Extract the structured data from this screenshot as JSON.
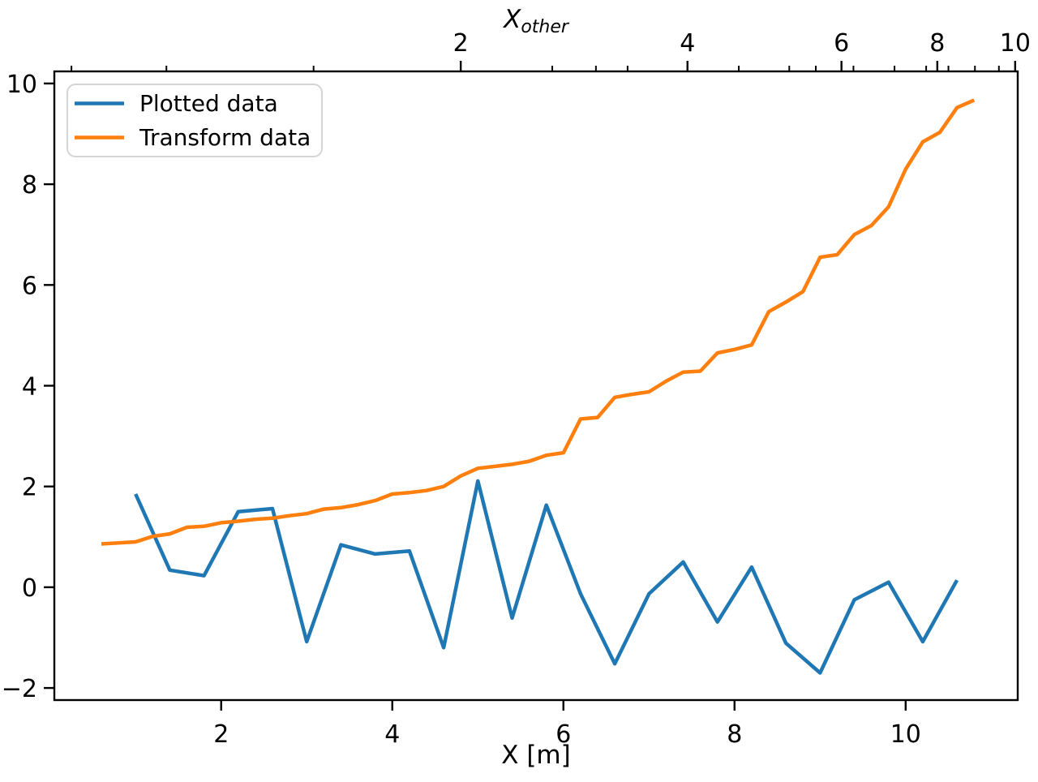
{
  "figure": {
    "background": "#ffffff",
    "frame_color": "#000000"
  },
  "legend": {
    "position": "upper left",
    "items": [
      {
        "label": "Plotted data",
        "color": "#1f77b4"
      },
      {
        "label": "Transform data",
        "color": "#ff7f0e"
      }
    ]
  },
  "chart_data": {
    "type": "line",
    "title": "",
    "xlabel": "X [m]",
    "ylabel": "",
    "top_xlabel": "X_other",
    "top_xlabel_parts": {
      "main": "X",
      "sub": "other"
    },
    "xlim": [
      0.05,
      11.31
    ],
    "ylim": [
      -2.24,
      10.24
    ],
    "grid": false,
    "legend_position": "upper left",
    "x_ticks": {
      "values": [
        2,
        4,
        6,
        8,
        10
      ],
      "labels": [
        "2",
        "4",
        "6",
        "8",
        "10"
      ]
    },
    "y_ticks": {
      "values": [
        -2,
        0,
        2,
        4,
        6,
        8,
        10
      ],
      "labels": [
        "−2",
        "0",
        "2",
        "4",
        "6",
        "8",
        "10"
      ]
    },
    "top_x_ticks": {
      "note": "secondary nonlinear axis; positions given in bottom-axis coordinates",
      "values": [
        2,
        4,
        6,
        8,
        10
      ],
      "labels": [
        "2",
        "4",
        "6",
        "8",
        "10"
      ],
      "positions": [
        4.8,
        7.45,
        9.25,
        10.37,
        11.28
      ],
      "minor_positions": [
        0.25,
        1.36,
        3.08,
        5.87,
        6.38,
        6.75,
        8.05,
        8.64,
        8.95,
        9.39,
        9.87,
        10.24,
        10.5,
        10.81,
        11.09
      ]
    },
    "series": [
      {
        "name": "Plotted data",
        "color": "#1f77b4",
        "x": [
          1.0,
          1.4,
          1.8,
          2.2,
          2.6,
          3.0,
          3.4,
          3.8,
          4.2,
          4.6,
          5.0,
          5.4,
          5.8,
          6.2,
          6.6,
          7.0,
          7.4,
          7.8,
          8.2,
          8.6,
          9.0,
          9.4,
          9.8,
          10.2,
          10.6
        ],
        "y": [
          1.85,
          0.34,
          0.23,
          1.5,
          1.56,
          -1.08,
          0.84,
          0.66,
          0.72,
          -1.2,
          2.11,
          -0.61,
          1.63,
          -0.13,
          -1.52,
          -0.13,
          0.5,
          -0.69,
          0.4,
          -1.11,
          -1.7,
          -0.25,
          0.1,
          -1.08,
          0.14
        ]
      },
      {
        "name": "Transform data",
        "color": "#ff7f0e",
        "x": [
          0.6,
          0.8,
          1.0,
          1.2,
          1.4,
          1.6,
          1.8,
          2.0,
          2.2,
          2.4,
          2.6,
          2.8,
          3.0,
          3.2,
          3.4,
          3.6,
          3.8,
          4.0,
          4.2,
          4.4,
          4.6,
          4.8,
          5.0,
          5.2,
          5.4,
          5.6,
          5.8,
          6.0,
          6.2,
          6.4,
          6.6,
          6.8,
          7.0,
          7.2,
          7.4,
          7.6,
          7.8,
          8.0,
          8.2,
          8.4,
          8.6,
          8.8,
          9.0,
          9.2,
          9.4,
          9.6,
          9.8,
          10.0,
          10.2,
          10.4,
          10.6,
          10.8
        ],
        "y": [
          0.86,
          0.88,
          0.9,
          1.01,
          1.06,
          1.19,
          1.21,
          1.28,
          1.31,
          1.35,
          1.37,
          1.42,
          1.46,
          1.55,
          1.58,
          1.64,
          1.72,
          1.85,
          1.88,
          1.92,
          2.0,
          2.21,
          2.36,
          2.4,
          2.44,
          2.5,
          2.62,
          2.67,
          3.34,
          3.37,
          3.77,
          3.83,
          3.88,
          4.09,
          4.27,
          4.29,
          4.65,
          4.72,
          4.81,
          5.47,
          5.66,
          5.87,
          6.55,
          6.6,
          7.0,
          7.18,
          7.55,
          8.3,
          8.84,
          9.03,
          9.52,
          9.67
        ]
      }
    ]
  }
}
